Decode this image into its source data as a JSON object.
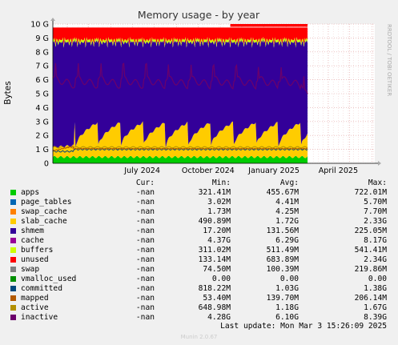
{
  "chart_data": {
    "type": "area",
    "title": "Memory usage - by year",
    "ylabel": "Bytes",
    "watermark": "RRDTOOL / TOBI OETIKER",
    "yticks": [
      "0",
      "1 G",
      "2 G",
      "3 G",
      "4 G",
      "5 G",
      "6 G",
      "7 G",
      "8 G",
      "9 G",
      "10 G"
    ],
    "ylim": [
      0,
      10
    ],
    "xticks": [
      "July 2024",
      "October 2024",
      "January 2025",
      "April 2025"
    ],
    "x_range": [
      "2024-03-12",
      "2025-06-05"
    ],
    "data_end": "2025-03-03",
    "grid": true,
    "columns": [
      "Cur:",
      "Min:",
      "Avg:",
      "Max:"
    ],
    "series": [
      {
        "name": "apps",
        "color": "#00cc00",
        "cur": "-nan",
        "min": "321.41M",
        "avg": "455.67M",
        "max": "722.01M",
        "level_gb": 0.45
      },
      {
        "name": "page_tables",
        "color": "#0066b3",
        "cur": "-nan",
        "min": "3.02M",
        "avg": "4.41M",
        "max": "5.70M",
        "level_gb": 0.004
      },
      {
        "name": "swap_cache",
        "color": "#ff8000",
        "cur": "-nan",
        "min": "1.73M",
        "avg": "4.25M",
        "max": "7.70M",
        "level_gb": 0.004
      },
      {
        "name": "slab_cache",
        "color": "#ffcc00",
        "cur": "-nan",
        "min": "490.89M",
        "avg": "1.72G",
        "max": "2.33G",
        "level_gb": 1.7
      },
      {
        "name": "shmem",
        "color": "#330099",
        "cur": "-nan",
        "min": "17.20M",
        "avg": "131.56M",
        "max": "225.05M",
        "level_gb": 0.13
      },
      {
        "name": "cache",
        "color": "#990099",
        "cur": "-nan",
        "min": "4.37G",
        "avg": "6.29G",
        "max": "8.17G",
        "level_gb": 6.3
      },
      {
        "name": "buffers",
        "color": "#ccff00",
        "cur": "-nan",
        "min": "311.02M",
        "avg": "511.49M",
        "max": "541.41M",
        "level_gb": 0.5
      },
      {
        "name": "unused",
        "color": "#ff0000",
        "cur": "-nan",
        "min": "133.14M",
        "avg": "683.89M",
        "max": "2.34G",
        "level_gb": 0.7
      },
      {
        "name": "swap",
        "color": "#808080",
        "cur": "-nan",
        "min": "74.50M",
        "avg": "100.39M",
        "max": "219.86M",
        "level_gb": 0.1
      },
      {
        "name": "vmalloc_used",
        "color": "#008f00",
        "cur": "-nan",
        "min": "0.00",
        "avg": "0.00",
        "max": "0.00",
        "level_gb": 0
      },
      {
        "name": "committed",
        "color": "#00487d",
        "cur": "-nan",
        "min": "818.22M",
        "avg": "1.03G",
        "max": "1.38G",
        "level_gb": 1.03
      },
      {
        "name": "mapped",
        "color": "#b35a00",
        "cur": "-nan",
        "min": "53.40M",
        "avg": "139.70M",
        "max": "206.14M",
        "level_gb": 0.14
      },
      {
        "name": "active",
        "color": "#b38f00",
        "cur": "-nan",
        "min": "648.98M",
        "avg": "1.18G",
        "max": "1.67G",
        "level_gb": 1.18
      },
      {
        "name": "inactive",
        "color": "#6b006b",
        "cur": "-nan",
        "min": "4.28G",
        "avg": "6.10G",
        "max": "8.39G",
        "level_gb": 6.1
      }
    ],
    "last_update": "Last update: Mon Mar  3 15:26:09 2025",
    "footer": "Munin 2.0.67"
  }
}
